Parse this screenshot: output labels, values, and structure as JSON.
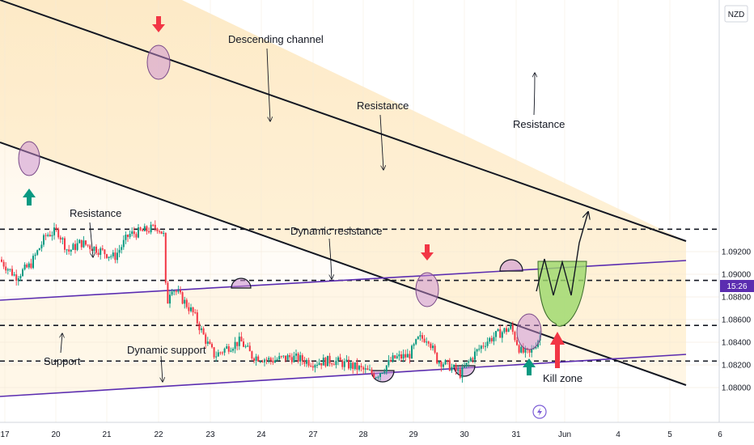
{
  "currency_label": "NZD",
  "current_time_badge": "15:26",
  "colors": {
    "up": "#089981",
    "down": "#f23645",
    "channel_fill": "#fde9c4",
    "trendline": "#000000",
    "dynamic_line": "#5b2db0",
    "highlight_circle": "#c98bd0",
    "bowl_fill": "#9bd86a",
    "badge_bg": "#5b2db0"
  },
  "annotations": {
    "descending_channel": "Descending channel",
    "resistance_top": "Resistance",
    "resistance_right": "Resistance",
    "resistance_left": "Resistance",
    "dynamic_resistance": "Dynamic resistance",
    "support": "Support",
    "dynamic_support": "Dynamic support",
    "kill_zone": "Kill zone"
  },
  "chart_data": {
    "type": "candlestick",
    "title": "",
    "xlabel": "",
    "ylabel": "",
    "ylim": [
      1.0792,
      1.099
    ],
    "x_ticks": [
      "17",
      "20",
      "21",
      "22",
      "23",
      "24",
      "27",
      "28",
      "29",
      "30",
      "31",
      "Jun",
      "4",
      "5",
      "6"
    ],
    "y_ticks": [
      "1.08000",
      "1.08200",
      "1.08400",
      "1.08600",
      "1.08800",
      "1.09000",
      "1.09200"
    ],
    "levels": [
      {
        "label": "1.09398",
        "value": 1.09398
      },
      {
        "label": "1.08946",
        "value": 1.08946
      },
      {
        "label": "1.08549",
        "value": 1.08549
      },
      {
        "label": "1.08234",
        "value": 1.08234
      }
    ],
    "path_anchors": [
      {
        "t": 0,
        "p": 1.0913
      },
      {
        "t": 20,
        "p": 1.0898
      },
      {
        "t": 38,
        "p": 1.0908
      },
      {
        "t": 58,
        "p": 1.0935
      },
      {
        "t": 72,
        "p": 1.0938
      },
      {
        "t": 85,
        "p": 1.092
      },
      {
        "t": 100,
        "p": 1.0928
      },
      {
        "t": 118,
        "p": 1.0923
      },
      {
        "t": 142,
        "p": 1.0915
      },
      {
        "t": 160,
        "p": 1.0935
      },
      {
        "t": 178,
        "p": 1.0938
      },
      {
        "t": 196,
        "p": 1.0942
      },
      {
        "t": 204,
        "p": 1.0933
      },
      {
        "t": 206,
        "p": 1.087
      },
      {
        "t": 212,
        "p": 1.089
      },
      {
        "t": 226,
        "p": 1.0878
      },
      {
        "t": 240,
        "p": 1.0865
      },
      {
        "t": 256,
        "p": 1.084
      },
      {
        "t": 266,
        "p": 1.0828
      },
      {
        "t": 283,
        "p": 1.0836
      },
      {
        "t": 298,
        "p": 1.0841
      },
      {
        "t": 312,
        "p": 1.0828
      },
      {
        "t": 336,
        "p": 1.0824
      },
      {
        "t": 360,
        "p": 1.0827
      },
      {
        "t": 388,
        "p": 1.0822
      },
      {
        "t": 412,
        "p": 1.0824
      },
      {
        "t": 440,
        "p": 1.0818
      },
      {
        "t": 466,
        "p": 1.0811
      },
      {
        "t": 488,
        "p": 1.0826
      },
      {
        "t": 506,
        "p": 1.0828
      },
      {
        "t": 518,
        "p": 1.0843
      },
      {
        "t": 530,
        "p": 1.0844
      },
      {
        "t": 540,
        "p": 1.0825
      },
      {
        "t": 556,
        "p": 1.0819
      },
      {
        "t": 570,
        "p": 1.0812
      },
      {
        "t": 584,
        "p": 1.0827
      },
      {
        "t": 600,
        "p": 1.084
      },
      {
        "t": 618,
        "p": 1.0848
      },
      {
        "t": 632,
        "p": 1.0853
      },
      {
        "t": 644,
        "p": 1.0832
      },
      {
        "t": 655,
        "p": 1.0829
      },
      {
        "t": 668,
        "p": 1.0846
      }
    ]
  }
}
